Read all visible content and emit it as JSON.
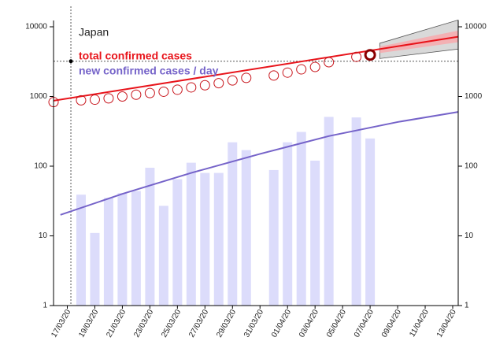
{
  "chart_data": {
    "type": "line",
    "title": "Japan",
    "log_y": true,
    "xlim": [
      0,
      29.4
    ],
    "xticks": [
      {
        "value": 1,
        "label": "17/03/20"
      },
      {
        "value": 3,
        "label": "19/03/20"
      },
      {
        "value": 5,
        "label": "21/03/20"
      },
      {
        "value": 7,
        "label": "23/03/20"
      },
      {
        "value": 9,
        "label": "25/03/20"
      },
      {
        "value": 11,
        "label": "27/03/20"
      },
      {
        "value": 13,
        "label": "29/03/20"
      },
      {
        "value": 15,
        "label": "31/03/20"
      },
      {
        "value": 17,
        "label": "01/04/20"
      },
      {
        "value": 19,
        "label": "03/04/20"
      },
      {
        "value": 21,
        "label": "05/04/20"
      },
      {
        "value": 23,
        "label": "07/04/20"
      },
      {
        "value": 25,
        "label": "09/04/20"
      },
      {
        "value": 27,
        "label": "11/04/20"
      },
      {
        "value": 29,
        "label": "13/04/20"
      }
    ],
    "ylim": [
      1,
      10000
    ],
    "yticks": [
      1,
      10,
      100,
      1000,
      10000
    ],
    "y2lim": [
      1,
      10000
    ],
    "y2ticks": [
      1,
      10,
      100,
      1000,
      10000
    ],
    "crosshair": {
      "x": 1.26,
      "y": 3200
    },
    "series": [
      {
        "name": "total confirmed cases",
        "color": "#e8141b",
        "kind": "points",
        "x": [
          0,
          2,
          3,
          4,
          5,
          6,
          7,
          8,
          9,
          10,
          11,
          12,
          13,
          14,
          16,
          17,
          18,
          19,
          20,
          22,
          23
        ],
        "values": [
          830,
          880,
          900,
          940,
          1000,
          1060,
          1120,
          1170,
          1250,
          1350,
          1450,
          1550,
          1700,
          1850,
          2000,
          2200,
          2450,
          2650,
          3100,
          3700,
          3950
        ]
      },
      {
        "name": "new confirmed cases / day",
        "color": "#7563c9",
        "kind": "bars",
        "bar_color": "#dcdcfb",
        "x": [
          2,
          3,
          4,
          5,
          6,
          7,
          8,
          9,
          10,
          11,
          12,
          13,
          14,
          16,
          17,
          18,
          19,
          20,
          22,
          23
        ],
        "values": [
          39,
          11,
          35,
          41,
          44,
          95,
          27,
          65,
          112,
          80,
          80,
          220,
          170,
          88,
          220,
          310,
          120,
          510,
          500,
          250
        ]
      }
    ],
    "fits": [
      {
        "color": "#e8141b",
        "x": [
          0,
          29.4
        ],
        "values": [
          870,
          7200
        ]
      },
      {
        "color": "#7563c9",
        "x": [
          0.5,
          5,
          10,
          15,
          20,
          25,
          29.4
        ],
        "values": [
          20,
          40,
          80,
          150,
          270,
          430,
          600
        ]
      }
    ],
    "bands": [
      {
        "color": "#d9d9d9",
        "x": [
          23.7,
          29.4
        ],
        "low": [
          3500,
          4800
        ],
        "high": [
          5800,
          12500
        ]
      },
      {
        "color": "#f3b1b4",
        "x": [
          23.7,
          29.4
        ],
        "low": [
          4200,
          6000
        ],
        "high": [
          5200,
          8800
        ]
      }
    ]
  }
}
